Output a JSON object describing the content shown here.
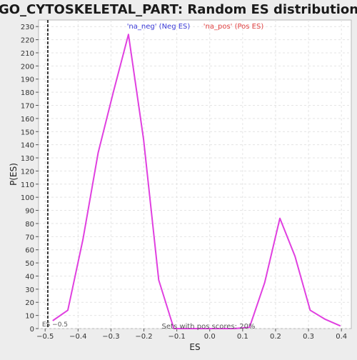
{
  "chart_data": {
    "type": "line",
    "title": "GO_CYTOSKELETAL_PART: Random ES distribution",
    "xlabel": "ES",
    "ylabel": "P(ES)",
    "xlim": [
      -0.52,
      0.43
    ],
    "ylim": [
      0,
      235
    ],
    "x_ticks": [
      -0.5,
      -0.4,
      -0.3,
      -0.2,
      -0.1,
      0.0,
      0.1,
      0.2,
      0.3,
      0.4
    ],
    "x_tick_labels": [
      "−0.5",
      "−0.4",
      "−0.3",
      "−0.2",
      "−0.1",
      "0.0",
      "0.1",
      "0.2",
      "0.3",
      "0.4"
    ],
    "y_ticks": [
      0,
      10,
      20,
      30,
      40,
      50,
      60,
      70,
      80,
      90,
      100,
      110,
      120,
      130,
      140,
      150,
      160,
      170,
      180,
      190,
      200,
      210,
      220,
      230
    ],
    "grid": true,
    "series": [
      {
        "name": "",
        "color": "#e040e0",
        "points": [
          {
            "x": -0.477,
            "y": 6
          },
          {
            "x": -0.431,
            "y": 14
          },
          {
            "x": -0.385,
            "y": 68
          },
          {
            "x": -0.339,
            "y": 134
          },
          {
            "x": -0.293,
            "y": 180
          },
          {
            "x": -0.247,
            "y": 224
          },
          {
            "x": -0.201,
            "y": 144
          },
          {
            "x": -0.155,
            "y": 37
          },
          {
            "x": -0.109,
            "y": 0
          },
          {
            "x": -0.063,
            "y": 0
          },
          {
            "x": -0.017,
            "y": 0
          },
          {
            "x": 0.029,
            "y": 0
          },
          {
            "x": 0.075,
            "y": 0
          },
          {
            "x": 0.121,
            "y": 1
          },
          {
            "x": 0.167,
            "y": 35
          },
          {
            "x": 0.213,
            "y": 84
          },
          {
            "x": 0.259,
            "y": 55
          },
          {
            "x": 0.305,
            "y": 14
          },
          {
            "x": 0.351,
            "y": 7
          },
          {
            "x": 0.397,
            "y": 2
          }
        ]
      }
    ],
    "legend": [
      {
        "label": "'na_neg' (Neg ES)",
        "color": "#3a3ad8"
      },
      {
        "label": "'na_pos' (Pos ES)",
        "color": "#e04040"
      }
    ],
    "reference_line": {
      "x": -0.492,
      "label": "ES −0.5"
    },
    "annotation": "Sets with pos scores: 20%"
  }
}
